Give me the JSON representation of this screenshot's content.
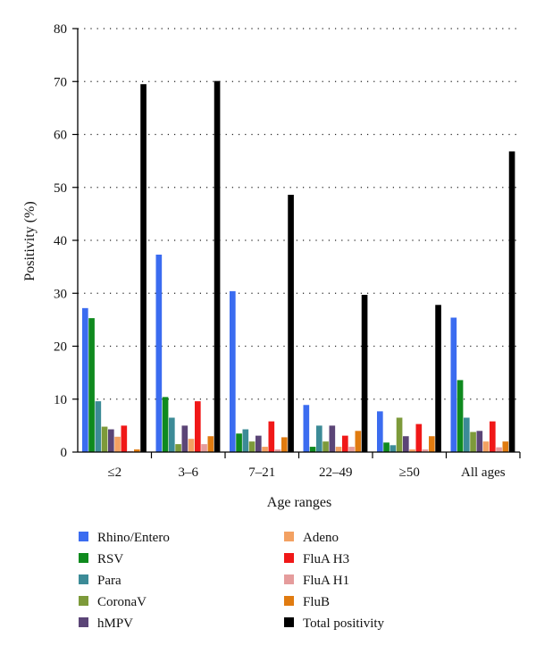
{
  "chart_data": {
    "type": "bar",
    "title": "",
    "xlabel": "Age ranges",
    "ylabel": "Positivity (%)",
    "ylim": [
      0,
      80
    ],
    "yticks": [
      "0",
      "10",
      "20",
      "30",
      "40",
      "50",
      "60",
      "70",
      "80"
    ],
    "grid": "horizontal dotted",
    "legend_position": "bottom",
    "categories": [
      "≤2",
      "3–6",
      "7–21",
      "22–49",
      "≥50",
      "All ages"
    ],
    "series": [
      {
        "name": "Rhino/Entero",
        "color": "#3b6cf0",
        "values": [
          27.2,
          37.3,
          30.4,
          8.9,
          7.7,
          25.4
        ]
      },
      {
        "name": "RSV",
        "color": "#0f8a1e",
        "values": [
          25.3,
          10.4,
          3.5,
          1.0,
          1.8,
          13.6
        ]
      },
      {
        "name": "Para",
        "color": "#3c8b97",
        "values": [
          9.6,
          6.5,
          4.3,
          5.0,
          1.3,
          6.5
        ]
      },
      {
        "name": "CoronaV",
        "color": "#7d9a3a",
        "values": [
          4.8,
          1.5,
          2.0,
          2.0,
          6.5,
          3.8
        ]
      },
      {
        "name": "hMPV",
        "color": "#5b4577",
        "values": [
          4.3,
          5.0,
          3.1,
          5.0,
          3.0,
          4.0
        ]
      },
      {
        "name": "Adeno",
        "color": "#f3a162",
        "values": [
          2.9,
          2.5,
          1.0,
          1.0,
          0.5,
          2.0
        ]
      },
      {
        "name": "FluA H3",
        "color": "#f01818",
        "values": [
          5.0,
          9.6,
          5.8,
          3.1,
          5.3,
          5.8
        ]
      },
      {
        "name": "FluA H1",
        "color": "#e59c9c",
        "values": [
          0.2,
          1.5,
          0.5,
          1.0,
          0.5,
          0.9
        ]
      },
      {
        "name": "FluB",
        "color": "#e07b10",
        "values": [
          0.5,
          3.0,
          2.8,
          4.0,
          3.0,
          2.0
        ]
      },
      {
        "name": "Total positivity",
        "color": "#000000",
        "values": [
          69.5,
          70.1,
          48.6,
          29.7,
          27.8,
          56.8
        ]
      }
    ]
  }
}
